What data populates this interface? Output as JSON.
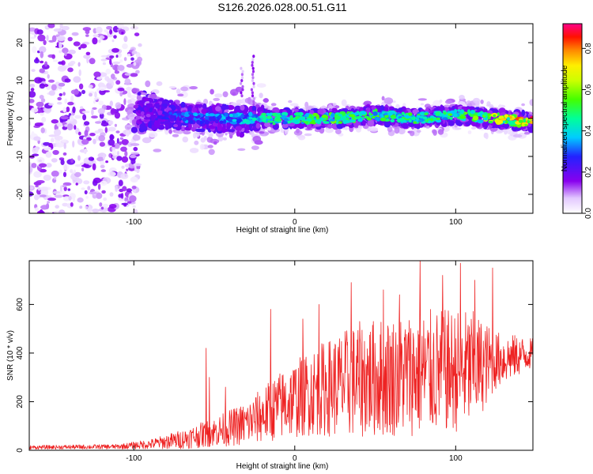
{
  "title": "S126.2026.028.00.51.G11",
  "chart_data": [
    {
      "type": "heatmap",
      "name": "spectrogram",
      "xlabel": "Height of straight line (km)",
      "ylabel": "Frequency (Hz)",
      "xlim": [
        -165,
        148
      ],
      "ylim": [
        -25,
        25
      ],
      "xticks": [
        -100,
        0,
        100
      ],
      "yticks": [
        -20,
        -10,
        0,
        10,
        20
      ],
      "colorbar": {
        "label": "Normalized spectral amplitude",
        "range": [
          0,
          0.92
        ],
        "ticks": [
          0.0,
          0.2,
          0.4,
          0.6,
          0.8
        ]
      },
      "ridge": [
        {
          "x": -100,
          "f": 0
        },
        {
          "x": -80,
          "f": 1
        },
        {
          "x": -60,
          "f": 0
        },
        {
          "x": -40,
          "f": 0
        },
        {
          "x": -20,
          "f": 0
        },
        {
          "x": 0,
          "f": 0
        },
        {
          "x": 25,
          "f": 0
        },
        {
          "x": 50,
          "f": 1
        },
        {
          "x": 75,
          "f": 0
        },
        {
          "x": 100,
          "f": 1
        },
        {
          "x": 125,
          "f": 0
        },
        {
          "x": 148,
          "f": -1
        }
      ],
      "ridge_amplitude": [
        {
          "x": -100,
          "a": 0.15
        },
        {
          "x": -70,
          "a": 0.35
        },
        {
          "x": -40,
          "a": 0.4
        },
        {
          "x": -20,
          "a": 0.5
        },
        {
          "x": 0,
          "a": 0.55
        },
        {
          "x": 30,
          "a": 0.6
        },
        {
          "x": 60,
          "a": 0.55
        },
        {
          "x": 90,
          "a": 0.55
        },
        {
          "x": 110,
          "a": 0.6
        },
        {
          "x": 130,
          "a": 0.75
        },
        {
          "x": 148,
          "a": 0.92
        }
      ]
    },
    {
      "type": "line",
      "name": "snr",
      "xlabel": "Height of straight line (km)",
      "ylabel": "SNR (10 * v/v)",
      "xlim": [
        -165,
        148
      ],
      "ylim": [
        0,
        780
      ],
      "xticks": [
        -100,
        0,
        100
      ],
      "yticks": [
        0,
        200,
        400,
        600
      ],
      "color": "#ee2222",
      "envelope": [
        {
          "x": -165,
          "mean": 12,
          "spread": 8
        },
        {
          "x": -110,
          "mean": 15,
          "spread": 10
        },
        {
          "x": -90,
          "mean": 25,
          "spread": 20
        },
        {
          "x": -70,
          "mean": 45,
          "spread": 40
        },
        {
          "x": -50,
          "mean": 75,
          "spread": 60
        },
        {
          "x": -30,
          "mean": 110,
          "spread": 90
        },
        {
          "x": -10,
          "mean": 180,
          "spread": 140
        },
        {
          "x": 10,
          "mean": 240,
          "spread": 180
        },
        {
          "x": 40,
          "mean": 290,
          "spread": 240
        },
        {
          "x": 80,
          "mean": 320,
          "spread": 260
        },
        {
          "x": 110,
          "mean": 330,
          "spread": 250
        },
        {
          "x": 125,
          "mean": 370,
          "spread": 120
        },
        {
          "x": 148,
          "mean": 400,
          "spread": 60
        }
      ],
      "spikes": [
        {
          "x": -55,
          "y": 420
        },
        {
          "x": -53,
          "y": 300
        },
        {
          "x": -43,
          "y": 260
        },
        {
          "x": -15,
          "y": 580
        },
        {
          "x": 5,
          "y": 540
        },
        {
          "x": 15,
          "y": 600
        },
        {
          "x": 35,
          "y": 690
        },
        {
          "x": 55,
          "y": 660
        },
        {
          "x": 65,
          "y": 640
        },
        {
          "x": 78,
          "y": 780
        },
        {
          "x": 92,
          "y": 720
        },
        {
          "x": 103,
          "y": 770
        },
        {
          "x": 112,
          "y": 700
        },
        {
          "x": 123,
          "y": 750
        }
      ]
    }
  ]
}
